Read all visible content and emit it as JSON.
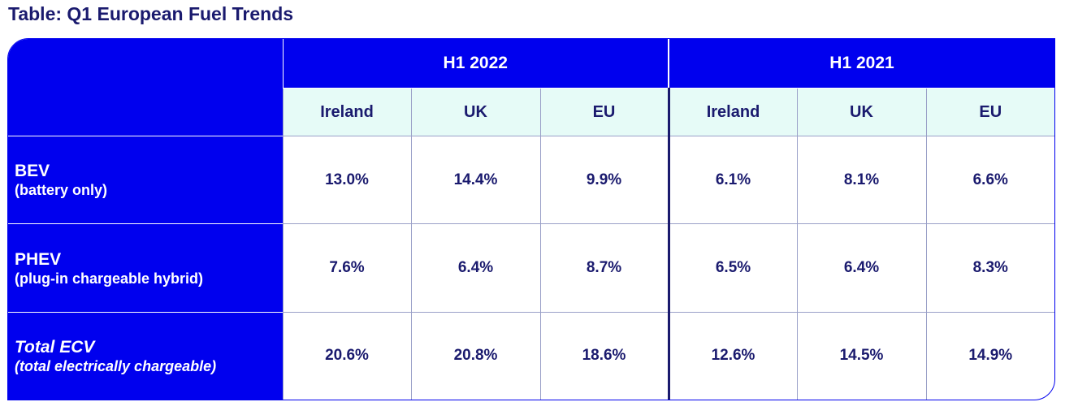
{
  "title": "Table: Q1 European Fuel Trends",
  "chart_data": {
    "type": "table",
    "periods": [
      "H1 2022",
      "H1 2021"
    ],
    "regions": [
      "Ireland",
      "UK",
      "EU"
    ],
    "rows": [
      {
        "label": "BEV",
        "sublabel": "(battery only)",
        "italic": false,
        "values": [
          "13.0%",
          "14.4%",
          "9.9%",
          "6.1%",
          "8.1%",
          "6.6%"
        ]
      },
      {
        "label": "PHEV",
        "sublabel": "(plug-in chargeable hybrid)",
        "italic": false,
        "values": [
          "7.6%",
          "6.4%",
          "8.7%",
          "6.5%",
          "6.4%",
          "8.3%"
        ]
      },
      {
        "label": "Total ECV",
        "sublabel": "(total electrically chargeable)",
        "italic": true,
        "values": [
          "20.6%",
          "20.8%",
          "18.6%",
          "12.6%",
          "14.5%",
          "14.9%"
        ]
      }
    ]
  },
  "colors": {
    "header_blue": "#0000ee",
    "subheader_mint": "#e6fbf7",
    "text_navy": "#1a1a6e"
  }
}
